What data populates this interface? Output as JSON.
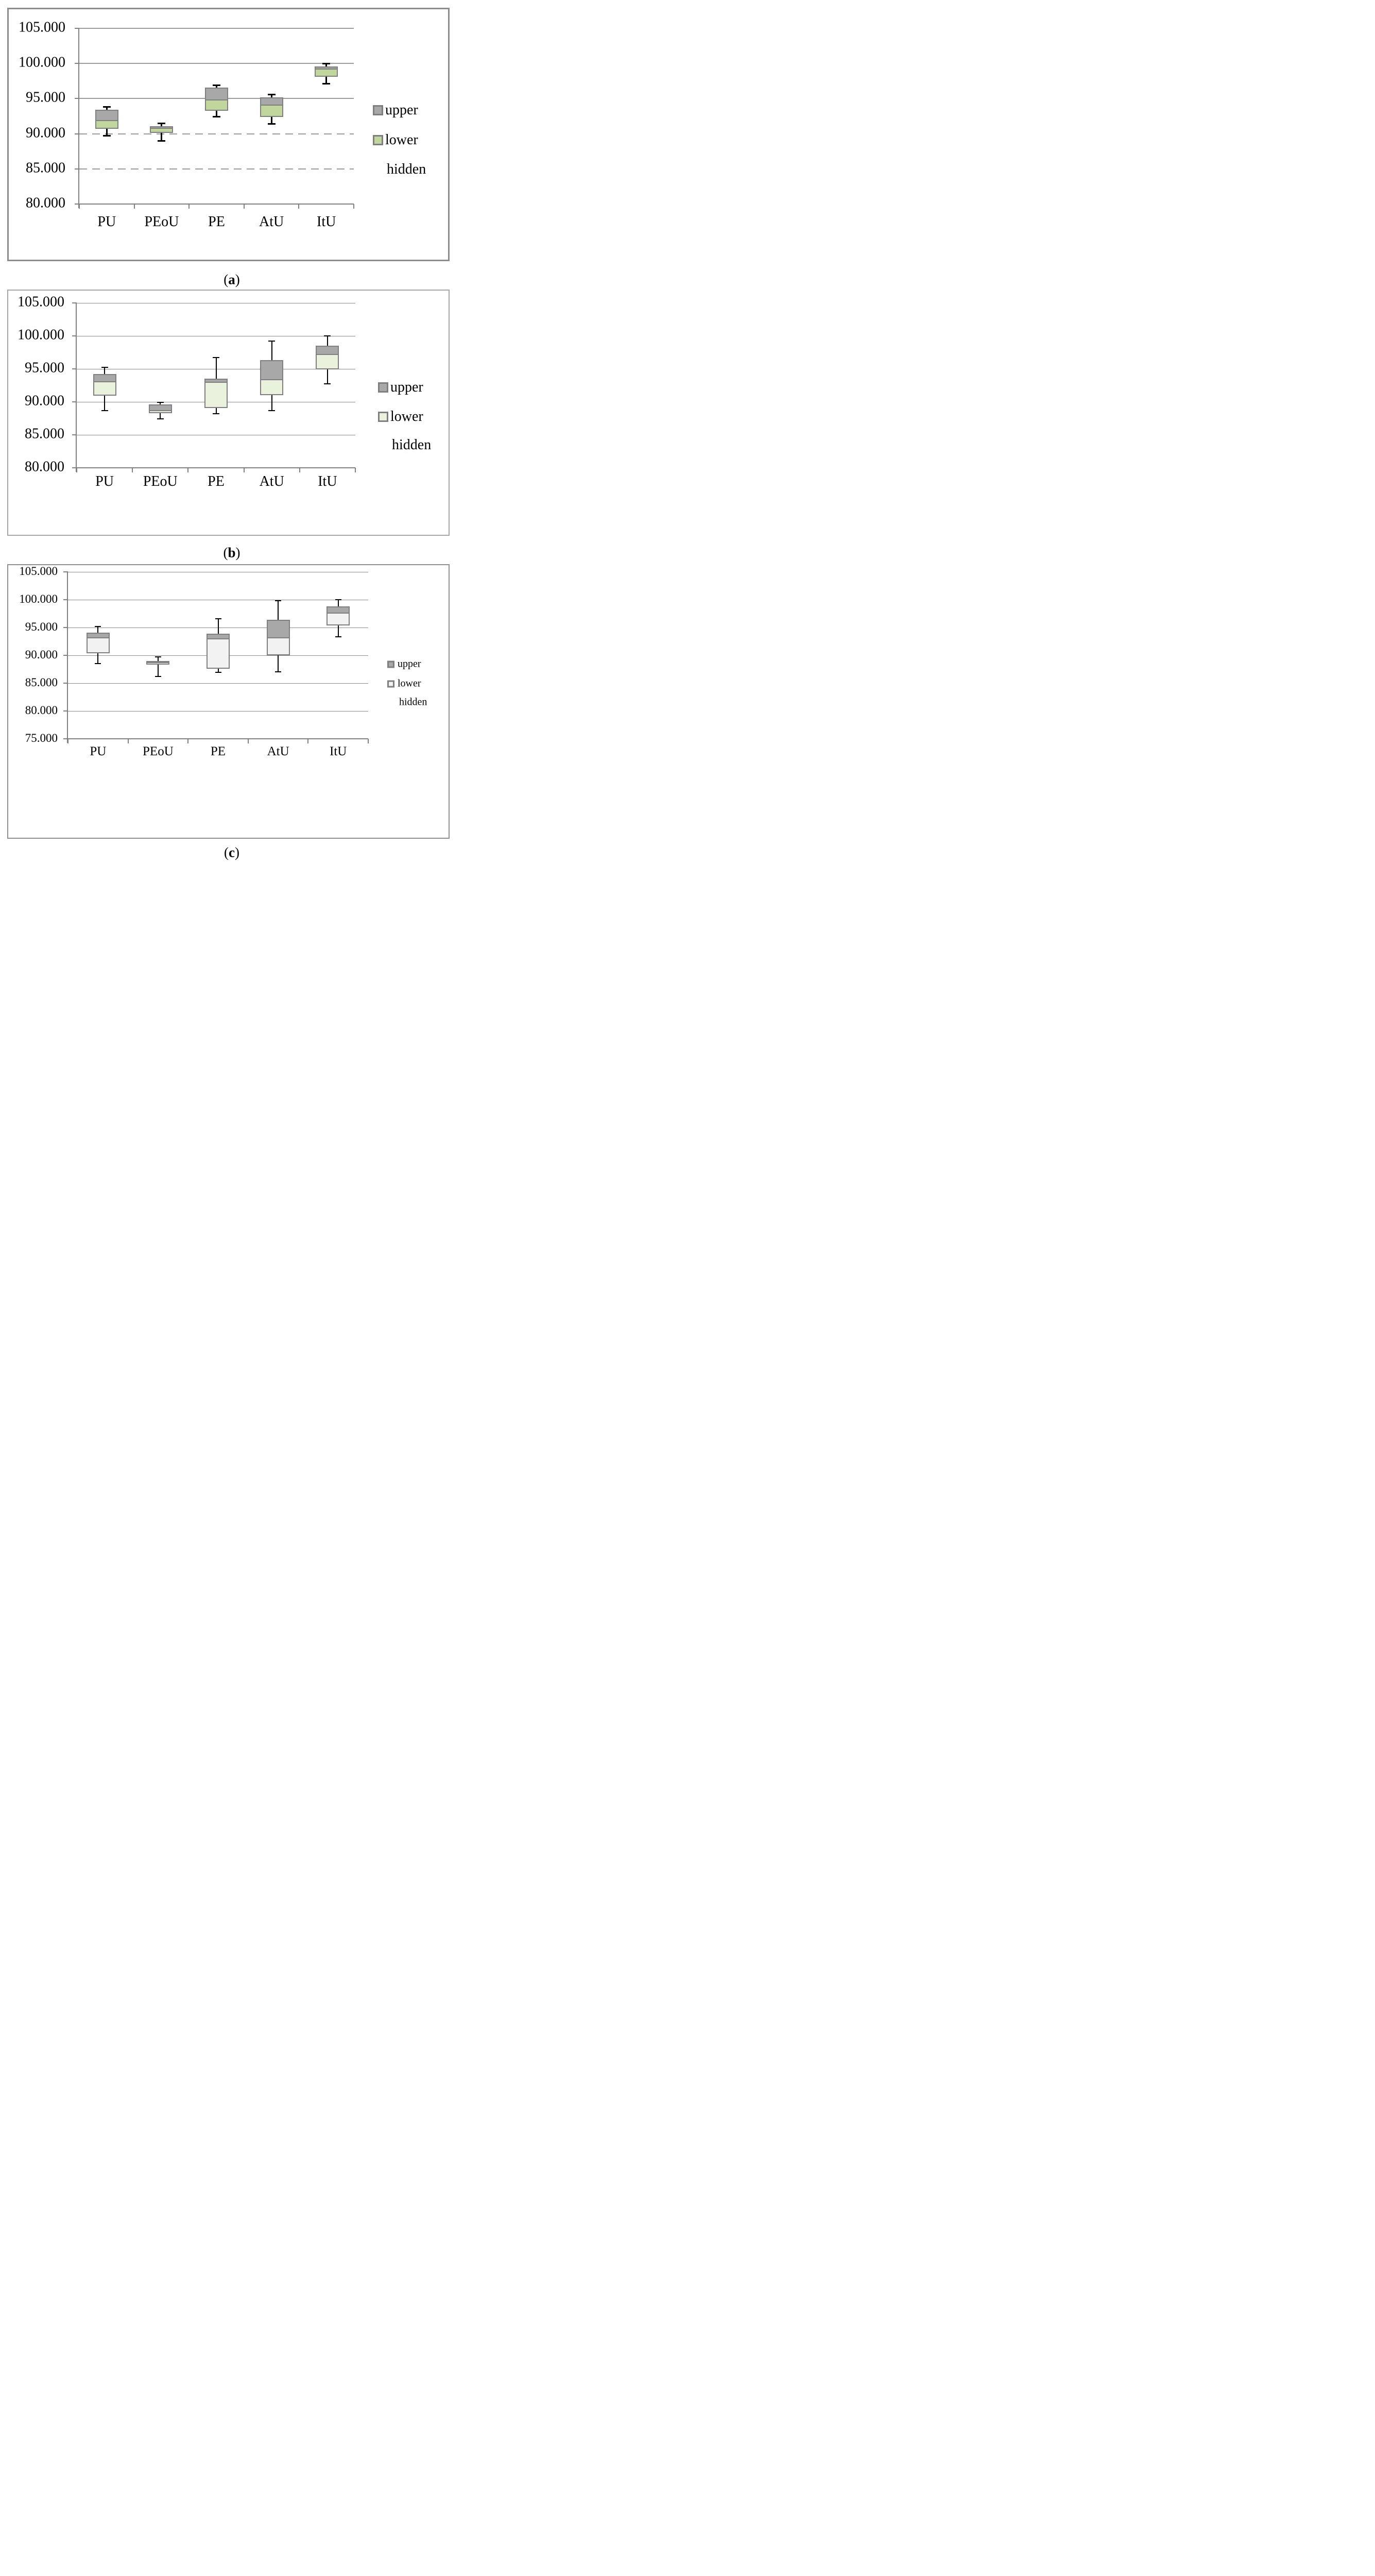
{
  "figure": {
    "description_visible_text_only": "three stacked box-whisker charts",
    "captions": {
      "a": "(a)",
      "b": "(b)",
      "c": "(c)"
    }
  },
  "legend_labels": [
    "upper",
    "lower",
    "hidden"
  ],
  "colors": {
    "upper_fill": "#a8a8a8",
    "lower_fill_a": "#c1d69c",
    "lower_fill_b": "#eaf1dd",
    "lower_fill_c": "#f2f2f2",
    "box_border": "#7f7f7f",
    "whisker": "#000000",
    "grid_a": "#9b9b9b",
    "grid_bc": "#8c8c8c",
    "axis": "#808080",
    "panel_border_a": "#8c8c8c",
    "panel_border_b": "#a6a6a6",
    "panel_border_c": "#8f8f8f",
    "text": "#000000"
  },
  "chart_data": [
    {
      "id": "a",
      "type": "box",
      "caption": "(a)",
      "categories": [
        "PU",
        "PEoU",
        "PE",
        "AtU",
        "ItU"
      ],
      "ylim": [
        80000,
        105000
      ],
      "yticks": [
        {
          "value": 105000,
          "label": "105.000",
          "grid": "solid"
        },
        {
          "value": 100000,
          "label": "100.000",
          "grid": "solid"
        },
        {
          "value": 95000,
          "label": "95.000",
          "grid": "solid"
        },
        {
          "value": 90000,
          "label": "90.000",
          "grid": "dashed"
        },
        {
          "value": 85000,
          "label": "85.000",
          "grid": "dashed"
        },
        {
          "value": 80000,
          "label": "80.000",
          "grid": "axis"
        }
      ],
      "legend": [
        {
          "label": "upper",
          "swatch": "#a8a8a8"
        },
        {
          "label": "lower",
          "swatch": "#c1d69c"
        },
        {
          "label": "hidden",
          "swatch": null
        }
      ],
      "boxes": [
        {
          "category": "PU",
          "whisker_high": 93800,
          "box_top": 93400,
          "median": 91800,
          "box_bottom": 90700,
          "whisker_low": 89700
        },
        {
          "category": "PEoU",
          "whisker_high": 91500,
          "box_top": 91100,
          "median": 90700,
          "box_bottom": 90100,
          "whisker_low": 89000
        },
        {
          "category": "PE",
          "whisker_high": 96900,
          "box_top": 96600,
          "median": 94700,
          "box_bottom": 93300,
          "whisker_low": 92400
        },
        {
          "category": "AtU",
          "whisker_high": 95600,
          "box_top": 95200,
          "median": 94000,
          "box_bottom": 92400,
          "whisker_low": 91400
        },
        {
          "category": "ItU",
          "whisker_high": 100000,
          "box_top": 99600,
          "median": 99100,
          "box_bottom": 98100,
          "whisker_low": 97100
        }
      ]
    },
    {
      "id": "b",
      "type": "box",
      "caption": "(b)",
      "categories": [
        "PU",
        "PEoU",
        "PE",
        "AtU",
        "ItU"
      ],
      "ylim": [
        80000,
        105000
      ],
      "yticks": [
        {
          "value": 105000,
          "label": "105.000",
          "grid": "solid"
        },
        {
          "value": 100000,
          "label": "100.000",
          "grid": "solid"
        },
        {
          "value": 95000,
          "label": "95.000",
          "grid": "solid"
        },
        {
          "value": 90000,
          "label": "90.000",
          "grid": "solid"
        },
        {
          "value": 85000,
          "label": "85.000",
          "grid": "solid"
        },
        {
          "value": 80000,
          "label": "80.000",
          "grid": "axis"
        }
      ],
      "legend": [
        {
          "label": "upper",
          "swatch": "#a8a8a8"
        },
        {
          "label": "lower",
          "swatch": "#eaf1dd"
        },
        {
          "label": "hidden",
          "swatch": null
        }
      ],
      "boxes": [
        {
          "category": "PU",
          "whisker_high": 95200,
          "box_top": 94200,
          "median": 93000,
          "box_bottom": 90900,
          "whisker_low": 88700
        },
        {
          "category": "PEoU",
          "whisker_high": 89900,
          "box_top": 89600,
          "median": 88600,
          "box_bottom": 88300,
          "whisker_low": 87400
        },
        {
          "category": "PE",
          "whisker_high": 96700,
          "box_top": 93500,
          "median": 92900,
          "box_bottom": 89100,
          "whisker_low": 88200
        },
        {
          "category": "AtU",
          "whisker_high": 99200,
          "box_top": 96300,
          "median": 93300,
          "box_bottom": 91000,
          "whisker_low": 88700
        },
        {
          "category": "ItU",
          "whisker_high": 100000,
          "box_top": 98500,
          "median": 97100,
          "box_bottom": 94900,
          "whisker_low": 92700
        }
      ]
    },
    {
      "id": "c",
      "type": "box",
      "caption": "(c)",
      "categories": [
        "PU",
        "PEoU",
        "PE",
        "AtU",
        "ItU"
      ],
      "ylim": [
        75000,
        105000
      ],
      "yticks": [
        {
          "value": 105000,
          "label": "105.000",
          "grid": "solid"
        },
        {
          "value": 100000,
          "label": "100.000",
          "grid": "solid"
        },
        {
          "value": 95000,
          "label": "95.000",
          "grid": "solid"
        },
        {
          "value": 90000,
          "label": "90.000",
          "grid": "solid"
        },
        {
          "value": 85000,
          "label": "85.000",
          "grid": "solid"
        },
        {
          "value": 80000,
          "label": "80.000",
          "grid": "solid"
        },
        {
          "value": 75000,
          "label": "75.000",
          "grid": "axis"
        }
      ],
      "legend": [
        {
          "label": "upper",
          "swatch": "#a8a8a8"
        },
        {
          "label": "lower",
          "swatch": "#f2f2f2"
        },
        {
          "label": "hidden",
          "swatch": null
        }
      ],
      "boxes": [
        {
          "category": "PU",
          "whisker_high": 95200,
          "box_top": 94100,
          "median": 93100,
          "box_bottom": 90400,
          "whisker_low": 88500
        },
        {
          "category": "PEoU",
          "whisker_high": 89700,
          "box_top": 89000,
          "median": 88700,
          "box_bottom": 88300,
          "whisker_low": 86200
        },
        {
          "category": "PE",
          "whisker_high": 96600,
          "box_top": 93900,
          "median": 92900,
          "box_bottom": 87600,
          "whisker_low": 86900
        },
        {
          "category": "AtU",
          "whisker_high": 99800,
          "box_top": 96400,
          "median": 93100,
          "box_bottom": 90000,
          "whisker_low": 87000
        },
        {
          "category": "ItU",
          "whisker_high": 100000,
          "box_top": 98800,
          "median": 97500,
          "box_bottom": 95400,
          "whisker_low": 93300
        }
      ]
    }
  ]
}
